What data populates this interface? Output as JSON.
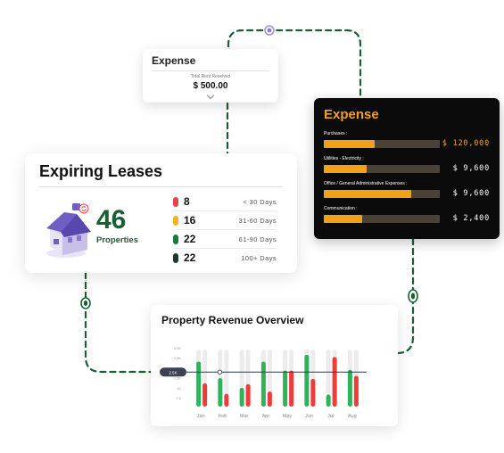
{
  "expense_summary": {
    "title": "Expense",
    "caption": "Total Rent Received",
    "amount": "$ 500.00",
    "expand_icon": "chevron-down-icon"
  },
  "expense_detail": {
    "title": "Expense",
    "rows": [
      {
        "label": "Purchases :",
        "value": "$ 120,000",
        "fill": 0.44,
        "highlight": true
      },
      {
        "label": "Utilities - Electricity :",
        "value": "$ 9,600",
        "fill": 0.37,
        "highlight": false
      },
      {
        "label": "Office / General Administrative Expenses :",
        "value": "$ 9,600",
        "fill": 0.75,
        "highlight": false
      },
      {
        "label": "Communication :",
        "value": "$ 2,400",
        "fill": 0.33,
        "highlight": false
      }
    ],
    "colors": {
      "accent": "#f0a21b",
      "track": "#4a4237",
      "background": "#0b0b0b"
    }
  },
  "expiring_leases": {
    "title": "Expiring Leases",
    "total": "46",
    "total_label": "Properties",
    "icon": "house-icon",
    "items": [
      {
        "count": "8",
        "range": "< 30 Days",
        "color": "#e64545"
      },
      {
        "count": "16",
        "range": "31-60 Days",
        "color": "#f0b323"
      },
      {
        "count": "22",
        "range": "61-90 Days",
        "color": "#1a7a3e"
      },
      {
        "count": "22",
        "range": "100+ Days",
        "color": "#1d3a2a"
      }
    ]
  },
  "revenue_overview": {
    "title": "Property Revenue Overview",
    "tooltip": "2.5K",
    "chart_data": {
      "type": "bar",
      "categories": [
        "Jan",
        "Feb",
        "Mar",
        "Apr",
        "May",
        "Jun",
        "Jul",
        "Aug"
      ],
      "y_ticks": [
        "3.5K",
        "2.5K",
        "2K",
        "1.5K",
        "1K",
        "0.5"
      ],
      "series": [
        {
          "values": [
            3.0,
            1.9,
            1.25,
            3.0,
            2.4,
            3.45,
            0.8,
            2.45
          ],
          "color": "#2fb35a"
        },
        {
          "values": [
            1.55,
            0.85,
            1.5,
            1.0,
            2.4,
            1.85,
            3.3,
            2.05
          ],
          "color": "#ef3b3b"
        }
      ],
      "ylim": [
        0,
        3.8
      ],
      "reference_line": 2.3
    }
  }
}
